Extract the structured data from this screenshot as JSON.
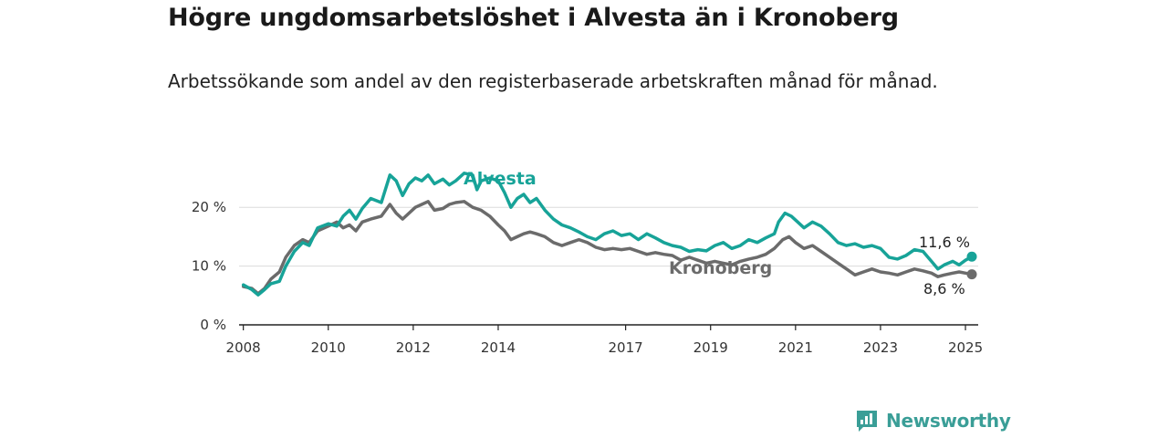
{
  "title": "Högre ungdomsarbetslöshet i Alvesta än i Kronoberg",
  "subtitle": "Arbetssökande som andel av den registerbaserade arbetskraften månad för månad.",
  "brand": {
    "name": "Newsworthy",
    "color": "#3a9e97"
  },
  "chart_data": {
    "type": "line",
    "title": "Högre ungdomsarbetslöshet i Alvesta än i Kronoberg",
    "subtitle": "Arbetssökande som andel av den registerbaserade arbetskraften månad för månad.",
    "x_ticks": [
      2008,
      2010,
      2012,
      2014,
      2017,
      2019,
      2021,
      2023,
      2025
    ],
    "y_ticks": [
      {
        "value": 0,
        "label": "0 %"
      },
      {
        "value": 10,
        "label": "10 %"
      },
      {
        "value": 20,
        "label": "20 %"
      }
    ],
    "xlim": [
      2007.9,
      2025.3
    ],
    "ylim": [
      0,
      25
    ],
    "grid": true,
    "series": [
      {
        "name": "Alvesta",
        "color": "#17a398",
        "end_value_label": "11,6 %",
        "points": [
          [
            2008.0,
            6.8
          ],
          [
            2008.2,
            6.0
          ],
          [
            2008.35,
            5.1
          ],
          [
            2008.5,
            6.0
          ],
          [
            2008.65,
            7.0
          ],
          [
            2008.85,
            7.4
          ],
          [
            2009.0,
            10.0
          ],
          [
            2009.2,
            12.5
          ],
          [
            2009.4,
            14.0
          ],
          [
            2009.55,
            13.5
          ],
          [
            2009.75,
            16.5
          ],
          [
            2010.0,
            17.2
          ],
          [
            2010.2,
            16.8
          ],
          [
            2010.35,
            18.5
          ],
          [
            2010.5,
            19.5
          ],
          [
            2010.65,
            18.0
          ],
          [
            2010.8,
            19.8
          ],
          [
            2011.0,
            21.5
          ],
          [
            2011.25,
            20.8
          ],
          [
            2011.45,
            25.5
          ],
          [
            2011.6,
            24.5
          ],
          [
            2011.75,
            22.0
          ],
          [
            2011.9,
            24.0
          ],
          [
            2012.05,
            25.0
          ],
          [
            2012.2,
            24.5
          ],
          [
            2012.35,
            25.5
          ],
          [
            2012.5,
            24.0
          ],
          [
            2012.7,
            24.8
          ],
          [
            2012.85,
            23.8
          ],
          [
            2013.0,
            24.5
          ],
          [
            2013.2,
            25.8
          ],
          [
            2013.4,
            25.5
          ],
          [
            2013.5,
            23.0
          ],
          [
            2013.6,
            24.5
          ],
          [
            2013.8,
            25.0
          ],
          [
            2014.0,
            24.5
          ],
          [
            2014.15,
            22.5
          ],
          [
            2014.3,
            20.0
          ],
          [
            2014.45,
            21.5
          ],
          [
            2014.6,
            22.2
          ],
          [
            2014.75,
            20.8
          ],
          [
            2014.9,
            21.5
          ],
          [
            2015.1,
            19.5
          ],
          [
            2015.3,
            18.0
          ],
          [
            2015.5,
            17.0
          ],
          [
            2015.7,
            16.5
          ],
          [
            2015.9,
            15.8
          ],
          [
            2016.1,
            15.0
          ],
          [
            2016.3,
            14.5
          ],
          [
            2016.5,
            15.5
          ],
          [
            2016.7,
            16.0
          ],
          [
            2016.9,
            15.2
          ],
          [
            2017.1,
            15.5
          ],
          [
            2017.3,
            14.5
          ],
          [
            2017.5,
            15.5
          ],
          [
            2017.7,
            14.8
          ],
          [
            2017.9,
            14.0
          ],
          [
            2018.1,
            13.5
          ],
          [
            2018.3,
            13.2
          ],
          [
            2018.5,
            12.5
          ],
          [
            2018.7,
            12.8
          ],
          [
            2018.9,
            12.6
          ],
          [
            2019.1,
            13.5
          ],
          [
            2019.3,
            14.0
          ],
          [
            2019.5,
            13.0
          ],
          [
            2019.7,
            13.5
          ],
          [
            2019.9,
            14.5
          ],
          [
            2020.1,
            14.0
          ],
          [
            2020.3,
            14.8
          ],
          [
            2020.5,
            15.5
          ],
          [
            2020.6,
            17.5
          ],
          [
            2020.75,
            19.0
          ],
          [
            2020.9,
            18.5
          ],
          [
            2021.05,
            17.5
          ],
          [
            2021.2,
            16.5
          ],
          [
            2021.4,
            17.5
          ],
          [
            2021.6,
            16.8
          ],
          [
            2021.8,
            15.5
          ],
          [
            2022.0,
            14.0
          ],
          [
            2022.2,
            13.5
          ],
          [
            2022.4,
            13.8
          ],
          [
            2022.6,
            13.2
          ],
          [
            2022.8,
            13.5
          ],
          [
            2023.0,
            13.0
          ],
          [
            2023.2,
            11.5
          ],
          [
            2023.4,
            11.2
          ],
          [
            2023.6,
            11.8
          ],
          [
            2023.8,
            12.8
          ],
          [
            2024.0,
            12.5
          ],
          [
            2024.2,
            10.8
          ],
          [
            2024.35,
            9.5
          ],
          [
            2024.5,
            10.2
          ],
          [
            2024.7,
            10.8
          ],
          [
            2024.85,
            10.2
          ],
          [
            2025.0,
            11.0
          ],
          [
            2025.15,
            11.6
          ]
        ]
      },
      {
        "name": "Kronoberg",
        "color": "#6b6b6b",
        "end_value_label": "8,6 %",
        "points": [
          [
            2008.0,
            6.5
          ],
          [
            2008.2,
            6.2
          ],
          [
            2008.35,
            5.3
          ],
          [
            2008.5,
            6.2
          ],
          [
            2008.65,
            7.8
          ],
          [
            2008.85,
            9.0
          ],
          [
            2009.0,
            11.5
          ],
          [
            2009.2,
            13.5
          ],
          [
            2009.4,
            14.5
          ],
          [
            2009.55,
            14.0
          ],
          [
            2009.75,
            16.0
          ],
          [
            2010.0,
            16.8
          ],
          [
            2010.2,
            17.5
          ],
          [
            2010.35,
            16.5
          ],
          [
            2010.5,
            17.0
          ],
          [
            2010.65,
            16.0
          ],
          [
            2010.8,
            17.5
          ],
          [
            2011.0,
            18.0
          ],
          [
            2011.25,
            18.5
          ],
          [
            2011.45,
            20.5
          ],
          [
            2011.6,
            19.0
          ],
          [
            2011.75,
            18.0
          ],
          [
            2011.9,
            19.0
          ],
          [
            2012.05,
            20.0
          ],
          [
            2012.2,
            20.5
          ],
          [
            2012.35,
            21.0
          ],
          [
            2012.5,
            19.5
          ],
          [
            2012.7,
            19.8
          ],
          [
            2012.85,
            20.5
          ],
          [
            2013.0,
            20.8
          ],
          [
            2013.2,
            21.0
          ],
          [
            2013.4,
            20.0
          ],
          [
            2013.6,
            19.5
          ],
          [
            2013.8,
            18.5
          ],
          [
            2014.0,
            17.0
          ],
          [
            2014.15,
            16.0
          ],
          [
            2014.3,
            14.5
          ],
          [
            2014.45,
            15.0
          ],
          [
            2014.6,
            15.5
          ],
          [
            2014.75,
            15.8
          ],
          [
            2014.9,
            15.5
          ],
          [
            2015.1,
            15.0
          ],
          [
            2015.3,
            14.0
          ],
          [
            2015.5,
            13.5
          ],
          [
            2015.7,
            14.0
          ],
          [
            2015.9,
            14.5
          ],
          [
            2016.1,
            14.0
          ],
          [
            2016.3,
            13.2
          ],
          [
            2016.5,
            12.8
          ],
          [
            2016.7,
            13.0
          ],
          [
            2016.9,
            12.8
          ],
          [
            2017.1,
            13.0
          ],
          [
            2017.3,
            12.5
          ],
          [
            2017.5,
            12.0
          ],
          [
            2017.7,
            12.3
          ],
          [
            2017.9,
            12.0
          ],
          [
            2018.1,
            11.8
          ],
          [
            2018.3,
            11.0
          ],
          [
            2018.5,
            11.5
          ],
          [
            2018.7,
            11.0
          ],
          [
            2018.9,
            10.5
          ],
          [
            2019.1,
            10.8
          ],
          [
            2019.3,
            10.5
          ],
          [
            2019.5,
            10.2
          ],
          [
            2019.7,
            10.8
          ],
          [
            2019.9,
            11.2
          ],
          [
            2020.1,
            11.5
          ],
          [
            2020.3,
            12.0
          ],
          [
            2020.5,
            13.0
          ],
          [
            2020.7,
            14.5
          ],
          [
            2020.85,
            15.0
          ],
          [
            2021.0,
            14.0
          ],
          [
            2021.2,
            13.0
          ],
          [
            2021.4,
            13.5
          ],
          [
            2021.6,
            12.5
          ],
          [
            2021.8,
            11.5
          ],
          [
            2022.0,
            10.5
          ],
          [
            2022.2,
            9.5
          ],
          [
            2022.4,
            8.5
          ],
          [
            2022.6,
            9.0
          ],
          [
            2022.8,
            9.5
          ],
          [
            2023.0,
            9.0
          ],
          [
            2023.2,
            8.8
          ],
          [
            2023.4,
            8.5
          ],
          [
            2023.6,
            9.0
          ],
          [
            2023.8,
            9.5
          ],
          [
            2024.0,
            9.2
          ],
          [
            2024.2,
            8.8
          ],
          [
            2024.35,
            8.2
          ],
          [
            2024.5,
            8.5
          ],
          [
            2024.7,
            8.8
          ],
          [
            2024.85,
            9.0
          ],
          [
            2025.0,
            8.8
          ],
          [
            2025.15,
            8.6
          ]
        ]
      }
    ]
  }
}
